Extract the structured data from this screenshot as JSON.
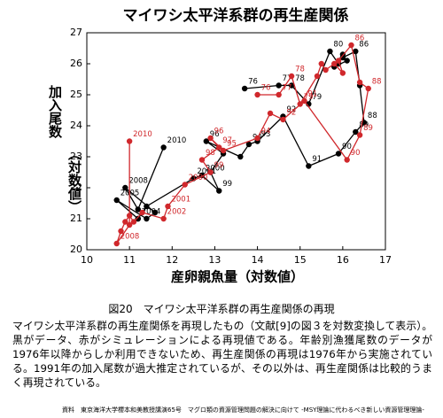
{
  "chart_data": {
    "type": "line",
    "title": "マイワシ太平洋系群の再生産関係",
    "xlabel": "産卵親魚量（対数値）",
    "ylabel_lines": [
      "加入尾数",
      "（対数値）"
    ],
    "xlim": [
      10,
      17
    ],
    "ylim": [
      20,
      27
    ],
    "xticks": [
      10,
      11,
      12,
      13,
      14,
      15,
      16,
      17
    ],
    "yticks": [
      20,
      21,
      22,
      23,
      24,
      25,
      26,
      27
    ],
    "series": [
      {
        "color": "#000000",
        "x": [
          13.7,
          14.5,
          14.8,
          15.2,
          15.7,
          15.9,
          16.0,
          15.8,
          16.1,
          16.0,
          16.3,
          16.4,
          16.5,
          16.3,
          15.9,
          15.2,
          14.6,
          14.0,
          13.8,
          13.6,
          12.8,
          13.2,
          12.9,
          13.1,
          12.7,
          12.5,
          11.4,
          11.2,
          11.2,
          10.7,
          11.4,
          11.6,
          10.9,
          11.2,
          11.8
        ],
        "values": [
          25.2,
          25.3,
          25.3,
          24.7,
          26.4,
          26.0,
          26.3,
          25.9,
          26.1,
          26.2,
          26.4,
          25.3,
          24.1,
          23.8,
          23.1,
          22.7,
          24.3,
          23.5,
          23.4,
          23.0,
          23.5,
          23.1,
          22.5,
          21.9,
          22.4,
          22.3,
          21.4,
          21.0,
          21.0,
          21.6,
          21.0,
          21.2,
          22.0,
          21.3,
          23.3
        ],
        "point_labels": [
          "76",
          "77",
          "78",
          "79",
          "80",
          null,
          null,
          null,
          null,
          null,
          "86",
          null,
          "88",
          "89",
          "90",
          "91",
          "92",
          "93",
          "94",
          null,
          "96",
          null,
          null,
          "99",
          "2000",
          "2001",
          null,
          null,
          "2004",
          "2005",
          null,
          null,
          "2008",
          null,
          "2010"
        ]
      },
      {
        "color": "#d0282c",
        "x": [
          14.0,
          14.5,
          14.8,
          15.0,
          15.4,
          15.5,
          15.6,
          15.8,
          16.0,
          15.9,
          16.2,
          16.4,
          16.6,
          16.4,
          16.1,
          15.1,
          14.6,
          14.3,
          14.0,
          13.2,
          12.9,
          13.1,
          12.7,
          12.9,
          12.3,
          11.9,
          11.8,
          11.3,
          11.1,
          11.0,
          10.9,
          10.8,
          10.7,
          11.0,
          11.0
        ],
        "values": [
          25.0,
          25.0,
          25.6,
          24.7,
          25.6,
          26.0,
          25.8,
          26.0,
          25.7,
          26.1,
          26.6,
          25.4,
          25.2,
          23.7,
          22.9,
          24.8,
          24.2,
          24.4,
          23.6,
          23.2,
          23.6,
          23.3,
          22.9,
          22.5,
          22.1,
          21.4,
          21.0,
          21.2,
          20.9,
          21.1,
          20.9,
          20.6,
          20.2,
          20.8,
          23.5
        ],
        "point_labels": [
          "76",
          "77",
          "78",
          "79",
          null,
          null,
          null,
          null,
          null,
          null,
          "86",
          null,
          "88",
          "89",
          "90",
          "91",
          "92",
          null,
          "94",
          "95",
          "96",
          "97",
          "98",
          "99",
          "2000",
          "2001",
          "2002",
          null,
          null,
          null,
          null,
          null,
          "2008",
          null,
          "2010"
        ]
      }
    ]
  },
  "caption": "図20　マイワシ太平洋系群の再生産関係の再現",
  "body": "マイワシ太平洋系群の再生産関係を再現したもの（文献[9]の図３を対数変換して表示）。黒がデータ、赤がシミュレーションによる再現値である。年齢別漁獲尾数のデータが1976年以降からしか利用できないため、再生産関係の再現は1976年から実施されている。1991年の加入尾数が過大推定されているが、その以外は、再生産関係は比較的うまく再現されている。",
  "source": "資料　東京海洋大学櫻本和美教授講演65号　マグロ類の資源管理問題の解決に向けて -MSY理論に代わるべき新しい資源管理理論-"
}
